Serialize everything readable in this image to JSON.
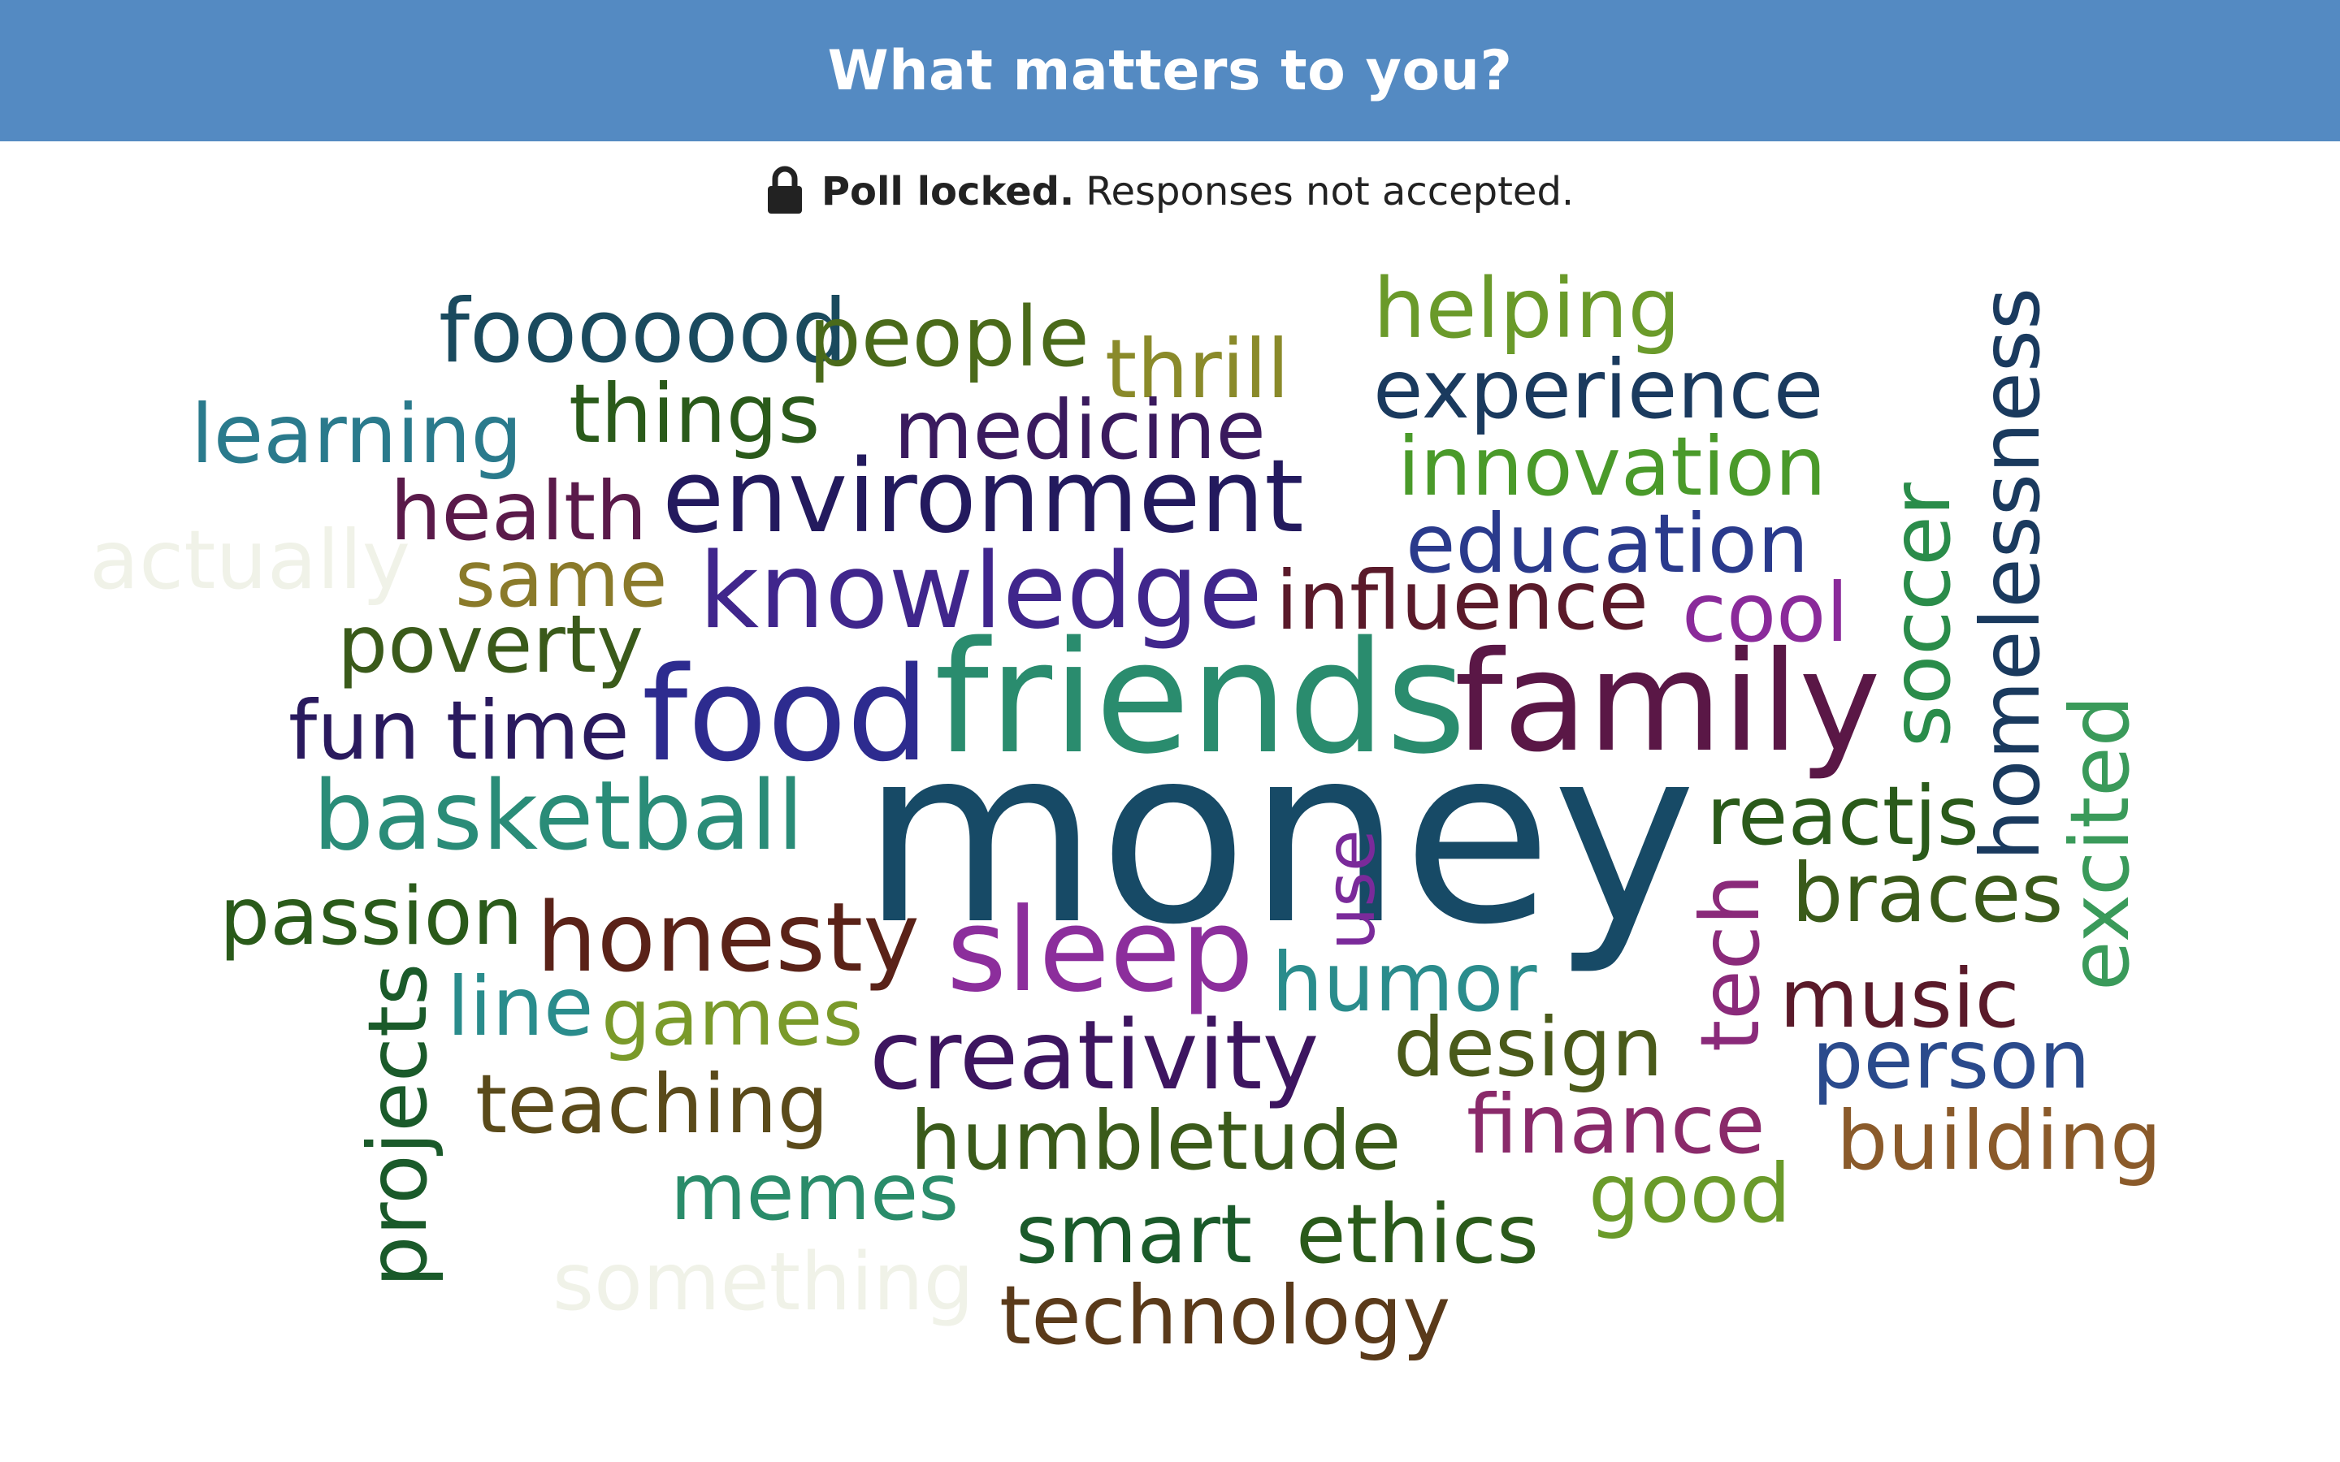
{
  "header": {
    "title": "What matters to you?"
  },
  "status": {
    "icon": "lock-icon",
    "bold_text": "Poll locked.",
    "text": "Responses not accepted."
  },
  "colors": {
    "header_bg": "#548AC2"
  },
  "words": [
    {
      "text": "money",
      "color": "#174A66",
      "vertical": false
    },
    {
      "text": "friends",
      "color": "#2A8C6E",
      "vertical": false
    },
    {
      "text": "family",
      "color": "#5A1746",
      "vertical": false
    },
    {
      "text": "food",
      "color": "#2D2B8F",
      "vertical": false
    },
    {
      "text": "knowledge",
      "color": "#40268C",
      "vertical": false
    },
    {
      "text": "environment",
      "color": "#231A5E",
      "vertical": false
    },
    {
      "text": "sleep",
      "color": "#8C2E9C",
      "vertical": false
    },
    {
      "text": "honesty",
      "color": "#5A2218",
      "vertical": false
    },
    {
      "text": "creativity",
      "color": "#3D1560",
      "vertical": false
    },
    {
      "text": "basketball",
      "color": "#2A8C78",
      "vertical": false
    },
    {
      "text": "fooooood",
      "color": "#1A4A5E",
      "vertical": false
    },
    {
      "text": "people",
      "color": "#4A6A1A",
      "vertical": false
    },
    {
      "text": "thrill",
      "color": "#8A8A2A",
      "vertical": false
    },
    {
      "text": "helping",
      "color": "#6A9A2A",
      "vertical": false
    },
    {
      "text": "experience",
      "color": "#1A3A5E",
      "vertical": false
    },
    {
      "text": "innovation",
      "color": "#4A9A2A",
      "vertical": false
    },
    {
      "text": "education",
      "color": "#2A3A8C",
      "vertical": false
    },
    {
      "text": "influence",
      "color": "#5A1A2A",
      "vertical": false
    },
    {
      "text": "cool",
      "color": "#8A2A9A",
      "vertical": false
    },
    {
      "text": "learning",
      "color": "#2A7A8C",
      "vertical": false
    },
    {
      "text": "things",
      "color": "#2A5A1A",
      "vertical": false
    },
    {
      "text": "medicine",
      "color": "#3A1A5E",
      "vertical": false
    },
    {
      "text": "health",
      "color": "#5A1A4A",
      "vertical": false
    },
    {
      "text": "actually",
      "color": "#F0F2E8",
      "vertical": false
    },
    {
      "text": "same",
      "color": "#8A7A2A",
      "vertical": false
    },
    {
      "text": "poverty",
      "color": "#3A5A1A",
      "vertical": false
    },
    {
      "text": "fun time",
      "color": "#2A1A5E",
      "vertical": false
    },
    {
      "text": "passion",
      "color": "#2A5A1A",
      "vertical": false
    },
    {
      "text": "line",
      "color": "#2A8C8C",
      "vertical": false
    },
    {
      "text": "games",
      "color": "#7A9A2A",
      "vertical": false
    },
    {
      "text": "teaching",
      "color": "#5A4A1A",
      "vertical": false
    },
    {
      "text": "memes",
      "color": "#2A8C6A",
      "vertical": false
    },
    {
      "text": "something",
      "color": "#F0F2E8",
      "vertical": false
    },
    {
      "text": "humbletude",
      "color": "#3A5A1A",
      "vertical": false
    },
    {
      "text": "smart",
      "color": "#1A5A2A",
      "vertical": false
    },
    {
      "text": "ethics",
      "color": "#2A5A1A",
      "vertical": false
    },
    {
      "text": "technology",
      "color": "#5A3A1A",
      "vertical": false
    },
    {
      "text": "humor",
      "color": "#2A8C8C",
      "vertical": false
    },
    {
      "text": "design",
      "color": "#4A5A1A",
      "vertical": false
    },
    {
      "text": "finance",
      "color": "#8A2A6A",
      "vertical": false
    },
    {
      "text": "good",
      "color": "#6A9A2A",
      "vertical": false
    },
    {
      "text": "reactjs",
      "color": "#2A5A1A",
      "vertical": false
    },
    {
      "text": "braces",
      "color": "#3A5A1A",
      "vertical": false
    },
    {
      "text": "music",
      "color": "#5A1A2A",
      "vertical": false
    },
    {
      "text": "person",
      "color": "#2A4A8C",
      "vertical": false
    },
    {
      "text": "building",
      "color": "#8A5A2A",
      "vertical": false
    },
    {
      "text": "use",
      "color": "#7A2A9A",
      "vertical": true
    },
    {
      "text": "tech",
      "color": "#8A2A7A",
      "vertical": true
    },
    {
      "text": "projects",
      "color": "#1A5A2A",
      "vertical": true
    },
    {
      "text": "soccer",
      "color": "#2A8C4A",
      "vertical": true
    },
    {
      "text": "homelessness",
      "color": "#1A3A5E",
      "vertical": true
    },
    {
      "text": "excited",
      "color": "#3A9A5A",
      "vertical": true
    }
  ]
}
